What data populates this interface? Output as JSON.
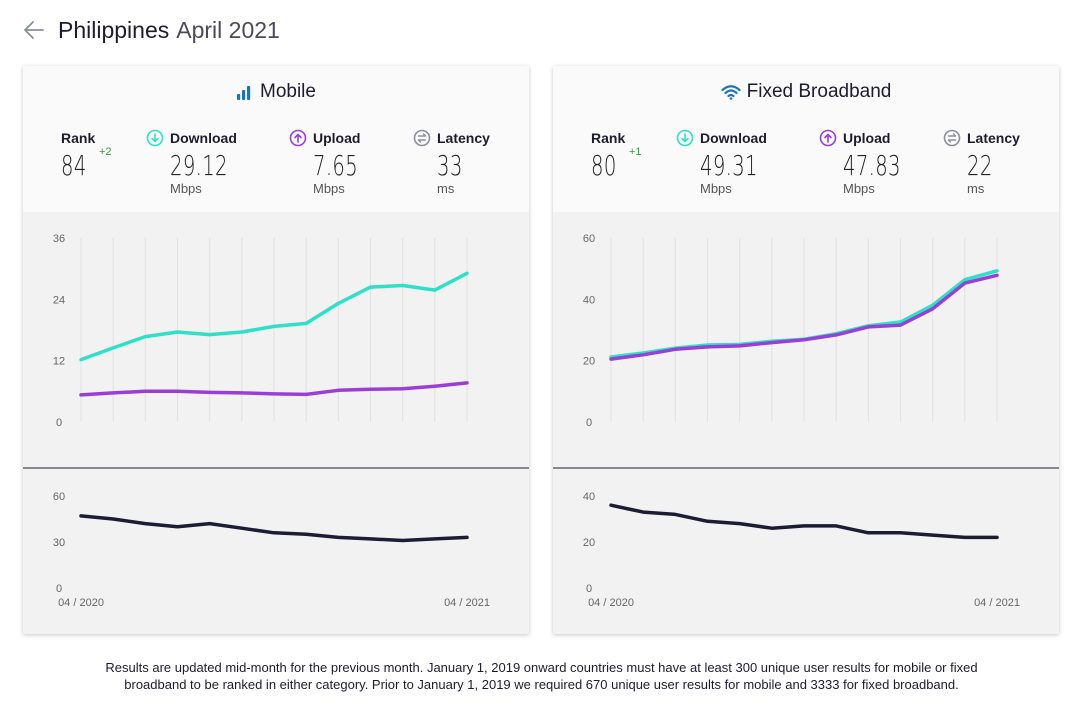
{
  "header": {
    "country": "Philippines",
    "date": "April 2021"
  },
  "labels": {
    "rank": "Rank",
    "download": "Download",
    "upload": "Upload",
    "latency": "Latency"
  },
  "colors": {
    "download": "#2ee0c8",
    "upload": "#9a3fd6",
    "latency": "#1c1c35",
    "rank_up": "#2f9b3a"
  },
  "mobile": {
    "title": "Mobile",
    "rank": "84",
    "rank_change": "+2",
    "download": "29.12",
    "download_unit": "Mbps",
    "upload": "7.65",
    "upload_unit": "Mbps",
    "latency": "33",
    "latency_unit": "ms"
  },
  "fixed": {
    "title": "Fixed Broadband",
    "rank": "80",
    "rank_change": "+1",
    "download": "49.31",
    "download_unit": "Mbps",
    "upload": "47.83",
    "upload_unit": "Mbps",
    "latency": "22",
    "latency_unit": "ms"
  },
  "chart_data": [
    {
      "id": "mobile-speed",
      "type": "line",
      "x": [
        "04 / 2020",
        "05 / 2020",
        "06 / 2020",
        "07 / 2020",
        "08 / 2020",
        "09 / 2020",
        "10 / 2020",
        "11 / 2020",
        "12 / 2020",
        "01 / 2021",
        "02 / 2021",
        "03 / 2021",
        "04 / 2021"
      ],
      "x_tick_labels": [],
      "y_ticks": [
        0,
        12,
        24,
        36
      ],
      "ylim": [
        0,
        36
      ],
      "series": [
        {
          "key": "download",
          "values": [
            12.2,
            14.5,
            16.7,
            17.6,
            17.1,
            17.6,
            18.7,
            19.3,
            23.2,
            26.4,
            26.7,
            25.8,
            29.1
          ]
        },
        {
          "key": "upload",
          "values": [
            5.3,
            5.7,
            6.0,
            6.0,
            5.8,
            5.7,
            5.5,
            5.4,
            6.2,
            6.4,
            6.5,
            7.0,
            7.65
          ]
        }
      ]
    },
    {
      "id": "mobile-latency",
      "type": "line",
      "x": [
        "04 / 2020",
        "05 / 2020",
        "06 / 2020",
        "07 / 2020",
        "08 / 2020",
        "09 / 2020",
        "10 / 2020",
        "11 / 2020",
        "12 / 2020",
        "01 / 2021",
        "02 / 2021",
        "03 / 2021",
        "04 / 2021"
      ],
      "x_tick_labels": [
        "04 / 2020",
        "04 / 2021"
      ],
      "y_ticks": [
        0,
        30,
        60
      ],
      "ylim": [
        0,
        60
      ],
      "series": [
        {
          "key": "latency",
          "values": [
            47,
            45,
            42,
            40,
            42,
            39,
            36,
            35,
            33,
            32,
            31,
            32,
            33
          ]
        }
      ]
    },
    {
      "id": "fixed-speed",
      "type": "line",
      "x": [
        "04 / 2020",
        "05 / 2020",
        "06 / 2020",
        "07 / 2020",
        "08 / 2020",
        "09 / 2020",
        "10 / 2020",
        "11 / 2020",
        "12 / 2020",
        "01 / 2021",
        "02 / 2021",
        "03 / 2021",
        "04 / 2021"
      ],
      "x_tick_labels": [],
      "y_ticks": [
        0,
        20,
        40,
        60
      ],
      "ylim": [
        0,
        60
      ],
      "series": [
        {
          "key": "download",
          "values": [
            21.2,
            22.5,
            24.1,
            25.1,
            25.3,
            26.3,
            27.0,
            28.8,
            31.4,
            32.6,
            38.1,
            46.4,
            49.31
          ]
        },
        {
          "key": "upload",
          "values": [
            20.5,
            21.9,
            23.7,
            24.5,
            24.8,
            25.9,
            26.8,
            28.4,
            31.0,
            31.6,
            36.9,
            45.3,
            47.83
          ]
        }
      ]
    },
    {
      "id": "fixed-latency",
      "type": "line",
      "x": [
        "04 / 2020",
        "05 / 2020",
        "06 / 2020",
        "07 / 2020",
        "08 / 2020",
        "09 / 2020",
        "10 / 2020",
        "11 / 2020",
        "12 / 2020",
        "01 / 2021",
        "02 / 2021",
        "03 / 2021",
        "04 / 2021"
      ],
      "x_tick_labels": [
        "04 / 2020",
        "04 / 2021"
      ],
      "y_ticks": [
        0,
        20,
        40
      ],
      "ylim": [
        0,
        40
      ],
      "series": [
        {
          "key": "latency",
          "values": [
            36,
            33,
            32,
            29,
            28,
            26,
            27,
            27,
            24,
            24,
            23,
            22,
            22
          ]
        }
      ]
    }
  ],
  "footnote": {
    "line1": "Results are updated mid-month for the previous month. January 1, 2019 onward countries must have at least 300 unique user results for mobile or fixed",
    "line2": "broadband to be ranked in either category. Prior to January 1, 2019 we required 670 unique user results for mobile and 3333 for fixed broadband."
  }
}
